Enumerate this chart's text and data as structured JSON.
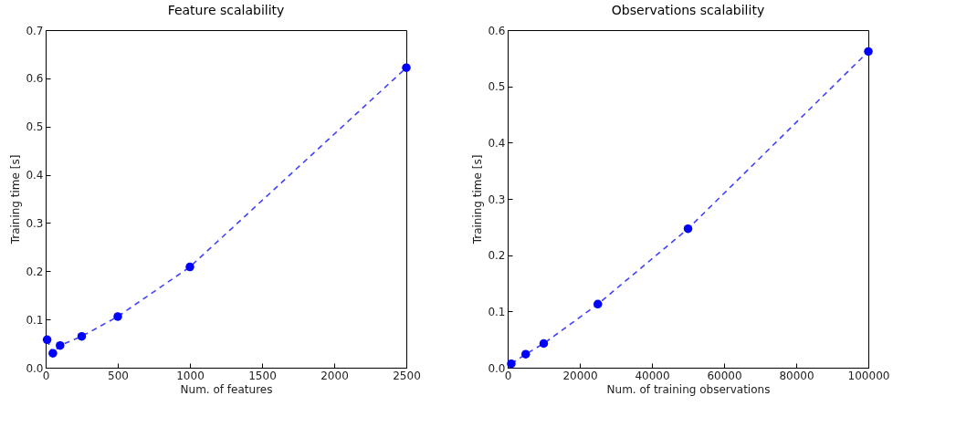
{
  "chart_data": [
    {
      "type": "line",
      "title": "Feature scalability",
      "xlabel": "Num. of features",
      "ylabel": "Training time [s]",
      "marker": "circle",
      "line_style": "dashed",
      "grid": false,
      "xlim": [
        0,
        2500
      ],
      "xticks": [
        0,
        500,
        1000,
        1500,
        2000,
        2500
      ],
      "ylim": [
        0,
        0.7
      ],
      "yticks": [
        {
          "value": 0,
          "label": "0.0"
        },
        0.1,
        0.2,
        0.3,
        0.4,
        0.5,
        0.6,
        0.7
      ],
      "x": [
        10,
        50,
        100,
        250,
        500,
        1000,
        2500
      ],
      "series": [
        {
          "color": "#0000ff",
          "values": [
            0.058,
            0.03,
            0.046,
            0.065,
            0.106,
            0.209,
            0.622
          ]
        }
      ]
    },
    {
      "type": "line",
      "title": "Observations scalability",
      "xlabel": "Num. of training observations",
      "ylabel": "Training time [s]",
      "marker": "circle",
      "line_style": "dashed",
      "grid": false,
      "xlim": [
        0,
        100000
      ],
      "xticks": [
        0,
        20000,
        40000,
        60000,
        80000,
        100000
      ],
      "ylim": [
        0,
        0.6
      ],
      "yticks": [
        {
          "value": 0,
          "label": "0.0"
        },
        0.1,
        0.2,
        0.3,
        0.4,
        0.5,
        0.6
      ],
      "x": [
        1000,
        5000,
        10000,
        25000,
        50000,
        100000
      ],
      "series": [
        {
          "color": "#0000ff",
          "values": [
            0.007,
            0.024,
            0.043,
            0.113,
            0.247,
            0.562
          ]
        }
      ]
    }
  ]
}
